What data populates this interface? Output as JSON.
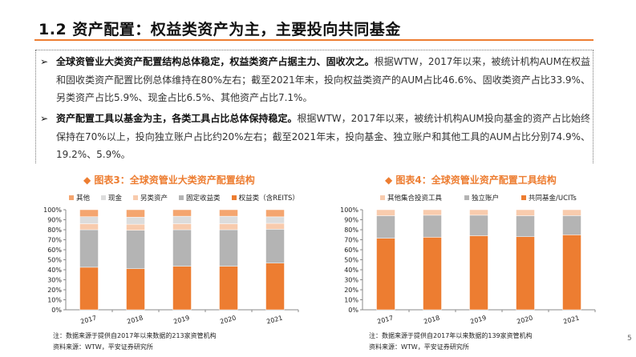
{
  "header": {
    "title": "1.2 资产配置：权益类资产为主，主要投向共同基金",
    "accent_color": "#ED7D31"
  },
  "bullets": [
    {
      "bold": "全球资管业大类资产配置结构总体稳定，权益类资产占据主力、固收次之。",
      "text": "根据WTW，2017年以来，被统计机构AUM在权益和固收类资产配置比例总体维持在80%左右；截至2021年末，投向权益类资产的AUM占比46.6%、固收类资产占比33.9%、另类资产占比5.9%、现金占比6.5%、其他资产占比7.1%。"
    },
    {
      "bold": "资产配置工具以基金为主，各类工具占比总体保持稳定。",
      "text": "根据WTW，2017年以来，被统计机构AUM投向基金的资产占比始终保持在70%以上，投向独立账户占比约20%左右；截至2021年末，投向基金、独立账户和其他工具的AUM占比分别74.9%、19.2%、5.9%。"
    }
  ],
  "bullet_icon": "arrow-right-icon",
  "chart_data": [
    {
      "type": "bar",
      "stacked": true,
      "title": "图表3：全球资管业大类资产配置结构",
      "categories": [
        "2017",
        "2018",
        "2019",
        "2020",
        "2021"
      ],
      "ylim": [
        0,
        100
      ],
      "yticks": [
        "0%",
        "10%",
        "20%",
        "30%",
        "40%",
        "50%",
        "60%",
        "70%",
        "80%",
        "90%",
        "100%"
      ],
      "legend_position": "top",
      "series": [
        {
          "name": "权益类（含REITS）",
          "color": "#ED7D31",
          "values": [
            42.5,
            41,
            43.5,
            43.5,
            46.6
          ]
        },
        {
          "name": "固定收益类",
          "color": "#B4B4B4",
          "values": [
            37.5,
            38.5,
            36.5,
            36.5,
            33.9
          ]
        },
        {
          "name": "另类资产",
          "color": "#F8CBAD",
          "values": [
            6,
            6,
            6,
            6,
            5.9
          ]
        },
        {
          "name": "现金",
          "color": "#DCDCDC",
          "values": [
            7,
            7,
            7.5,
            7.5,
            6.5
          ]
        },
        {
          "name": "其他",
          "color": "#F4A56F",
          "values": [
            7,
            7.5,
            6.5,
            6.5,
            7.1
          ]
        }
      ],
      "legend_order": [
        4,
        3,
        2,
        1,
        0
      ],
      "note": "注：数据来源于提供自2017年以来数据的213家资管机构",
      "source": "资料来源：WTW，平安证券研究所"
    },
    {
      "type": "bar",
      "stacked": true,
      "title": "图表4：全球资管业资产配置工具结构",
      "categories": [
        "2017",
        "2018",
        "2019",
        "2020",
        "2021"
      ],
      "ylim": [
        0,
        100
      ],
      "yticks": [
        "0%",
        "10%",
        "20%",
        "30%",
        "40%",
        "50%",
        "60%",
        "70%",
        "80%",
        "90%",
        "100%"
      ],
      "legend_position": "top",
      "series": [
        {
          "name": "共同基金/UCITs",
          "color": "#ED7D31",
          "values": [
            71.5,
            72.5,
            74,
            73,
            74.9
          ]
        },
        {
          "name": "独立账户",
          "color": "#B4B4B4",
          "values": [
            22.5,
            22,
            20.5,
            21,
            19.2
          ]
        },
        {
          "name": "其他集合投资工具",
          "color": "#F8CBAD",
          "values": [
            6,
            5.5,
            5.5,
            6,
            5.9
          ]
        }
      ],
      "legend_order": [
        2,
        1,
        0
      ],
      "note": "注：数据来源于提供自2017年以来数据的139家资管机构",
      "source": "资料来源：WTW，平安证券研究所"
    }
  ],
  "page_number": "5"
}
